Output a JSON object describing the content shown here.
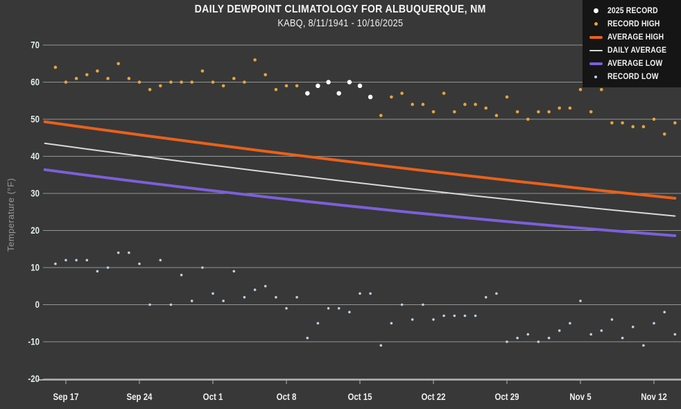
{
  "colors": {
    "background": "#383838",
    "legend_background": "#151515",
    "grid": "#b3b3b3",
    "axis_line": "#cfcfcf",
    "title_text": "#f5f5f5",
    "tick_text": "#e3edec",
    "x_tick_text": "#efefef",
    "y_axis_label_text": "#9a9a9a"
  },
  "legend": {
    "position": "top-right",
    "items": [
      {
        "label": "2025 Record",
        "marker": "dot",
        "color": "#ffffff",
        "size": 7
      },
      {
        "label": "Record High",
        "marker": "dot",
        "color": "#e6a53f",
        "size": 5
      },
      {
        "label": "Average High",
        "marker": "line",
        "color": "#e8611c",
        "size": 4
      },
      {
        "label": "Daily Average",
        "marker": "line",
        "color": "#d9d9d9",
        "size": 2
      },
      {
        "label": "Average Low",
        "marker": "line",
        "color": "#7d5fd9",
        "size": 4
      },
      {
        "label": "Record Low",
        "marker": "dot",
        "color": "#bcd2e8",
        "size": 4
      }
    ]
  },
  "chart_data": {
    "type": "line",
    "subtype": "mixed line + scatter climatology",
    "title": "DAILY DEWPOINT CLIMATOLOGY FOR ALBUQUERQUE, NM",
    "subtitle": "KABQ, 8/11/1941 - 10/16/2025",
    "xlabel": "",
    "ylabel": "Temperature (°F)",
    "ylim": [
      -20,
      70
    ],
    "y_ticks": [
      70,
      60,
      50,
      40,
      30,
      20,
      10,
      0,
      -10,
      -20
    ],
    "x_ticks": [
      "Sep 17",
      "Sep 24",
      "Oct 1",
      "Oct 8",
      "Oct 15",
      "Oct 22",
      "Oct 29",
      "Nov 5",
      "Nov 12"
    ],
    "grid": true,
    "dates": [
      "Sep 16",
      "Sep 17",
      "Sep 18",
      "Sep 19",
      "Sep 20",
      "Sep 21",
      "Sep 22",
      "Sep 23",
      "Sep 24",
      "Sep 25",
      "Sep 26",
      "Sep 27",
      "Sep 28",
      "Sep 29",
      "Sep 30",
      "Oct 1",
      "Oct 2",
      "Oct 3",
      "Oct 4",
      "Oct 5",
      "Oct 6",
      "Oct 7",
      "Oct 8",
      "Oct 9",
      "Oct 10",
      "Oct 11",
      "Oct 12",
      "Oct 13",
      "Oct 14",
      "Oct 15",
      "Oct 16",
      "Oct 17",
      "Oct 18",
      "Oct 19",
      "Oct 20",
      "Oct 21",
      "Oct 22",
      "Oct 23",
      "Oct 24",
      "Oct 25",
      "Oct 26",
      "Oct 27",
      "Oct 28",
      "Oct 29",
      "Oct 30",
      "Oct 31",
      "Nov 1",
      "Nov 2",
      "Nov 3",
      "Nov 4",
      "Nov 5",
      "Nov 6",
      "Nov 7",
      "Nov 8",
      "Nov 9",
      "Nov 10",
      "Nov 11",
      "Nov 12",
      "Nov 13",
      "Nov 14"
    ],
    "series": [
      {
        "name": "2025 Record",
        "mode": "markers",
        "color": "#ffffff",
        "marker_size": 6.5,
        "dates": [
          "Oct 10",
          "Oct 11",
          "Oct 12",
          "Oct 13",
          "Oct 14",
          "Oct 15",
          "Oct 16"
        ],
        "values": [
          57,
          59,
          60,
          57,
          60,
          59,
          56
        ]
      },
      {
        "name": "Record High",
        "mode": "markers",
        "color": "#e6a53f",
        "marker_size": 4.6,
        "values": [
          64,
          60,
          61,
          62,
          63,
          61,
          65,
          61,
          60,
          58,
          59,
          60,
          60,
          60,
          63,
          60,
          59,
          61,
          60,
          66,
          62,
          58,
          59,
          59,
          null,
          null,
          null,
          null,
          null,
          null,
          null,
          51,
          56,
          57,
          54,
          54,
          52,
          57,
          52,
          54,
          54,
          53,
          51,
          56,
          52,
          50,
          52,
          52,
          53,
          53,
          58,
          52,
          58,
          49,
          49,
          48,
          48,
          50,
          46,
          49
        ]
      },
      {
        "name": "Average High",
        "mode": "line",
        "color": "#e8611c",
        "line_width": 4,
        "trend": [
          [
            "Sep 15",
            49.3
          ],
          [
            "Oct 15",
            38.2
          ],
          [
            "Nov 14",
            28.7
          ]
        ]
      },
      {
        "name": "Daily Average",
        "mode": "line",
        "color": "#d9d9d9",
        "line_width": 2,
        "trend": [
          [
            "Sep 15",
            43.5
          ],
          [
            "Oct 15",
            32.8
          ],
          [
            "Nov 14",
            23.9
          ]
        ]
      },
      {
        "name": "Average Low",
        "mode": "line",
        "color": "#7d5fd9",
        "line_width": 4,
        "trend": [
          [
            "Sep 15",
            36.4
          ],
          [
            "Oct 15",
            26.3
          ],
          [
            "Nov 14",
            18.6
          ]
        ]
      },
      {
        "name": "Record Low",
        "mode": "markers",
        "color": "#bcd2e8",
        "marker_size": 3.6,
        "values": [
          11,
          12,
          12,
          12,
          9,
          10,
          14,
          14,
          11,
          0,
          12,
          0,
          8,
          1,
          10,
          3,
          1,
          9,
          2,
          4,
          5,
          2,
          -1,
          2,
          -9,
          -5,
          -1,
          -1,
          -2,
          3,
          3,
          -11,
          -5,
          0,
          -4,
          0,
          -4,
          -3,
          -3,
          -3,
          -3,
          2,
          3,
          -10,
          -9,
          -8,
          -10,
          -9,
          -7,
          -5,
          1,
          -8,
          -7,
          -4,
          -9,
          -6,
          -11,
          -5,
          -2,
          -8
        ]
      }
    ]
  }
}
